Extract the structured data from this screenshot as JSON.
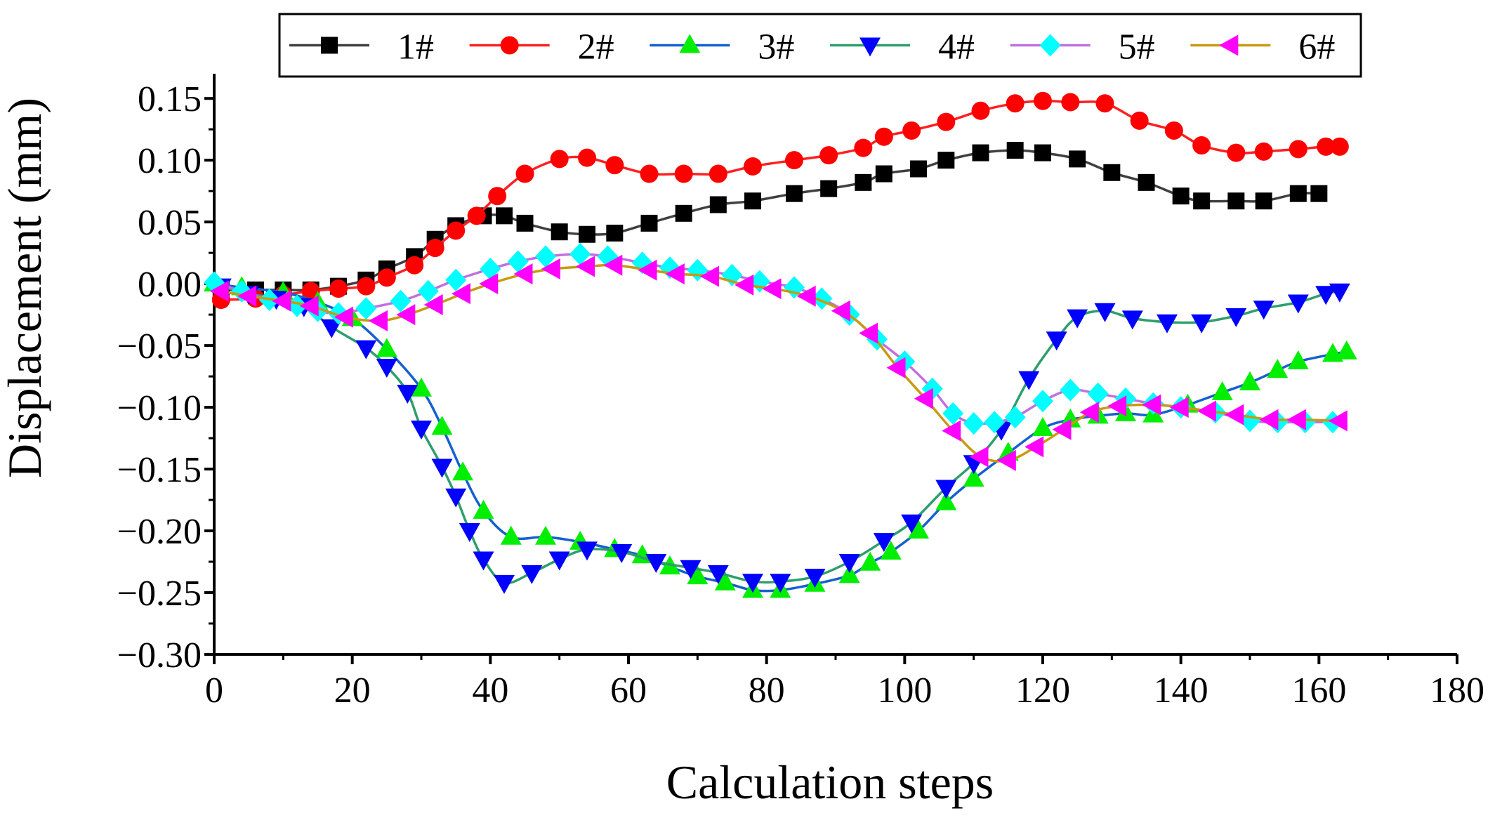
{
  "chart_data": {
    "type": "line",
    "title": "",
    "xlabel": "Calculation steps",
    "ylabel": "Displacement (mm)",
    "xlim": [
      0,
      180
    ],
    "ylim": [
      -0.3,
      0.17
    ],
    "xticks": [
      0,
      20,
      40,
      60,
      80,
      100,
      120,
      140,
      160,
      180
    ],
    "yticks": [
      -0.3,
      -0.25,
      -0.2,
      -0.15,
      -0.1,
      -0.05,
      0.0,
      0.05,
      0.1,
      0.15
    ],
    "xtick_labels": [
      "0",
      "20",
      "40",
      "60",
      "80",
      "100",
      "120",
      "140",
      "160",
      "180"
    ],
    "ytick_labels": [
      "−0.30",
      "−0.25",
      "−0.20",
      "−0.15",
      "−0.10",
      "−0.05",
      "0.00",
      "0.05",
      "0.10",
      "0.15"
    ],
    "grid": false,
    "legend_position": "top",
    "series": [
      {
        "name": "1#",
        "color": "#404040",
        "marker_color": "#000000",
        "marker": "square",
        "x": [
          1,
          6,
          10,
          14,
          18,
          22,
          25,
          29,
          32,
          35,
          39,
          42,
          45,
          50,
          54,
          58,
          63,
          68,
          73,
          78,
          84,
          89,
          94,
          97,
          102,
          106,
          111,
          116,
          120,
          125,
          130,
          135,
          140,
          143,
          148,
          152,
          157,
          160
        ],
        "y": [
          -0.005,
          -0.005,
          -0.005,
          -0.005,
          -0.002,
          0.003,
          0.012,
          0.022,
          0.036,
          0.047,
          0.055,
          0.055,
          0.049,
          0.042,
          0.04,
          0.041,
          0.049,
          0.057,
          0.064,
          0.067,
          0.073,
          0.077,
          0.082,
          0.089,
          0.093,
          0.1,
          0.106,
          0.108,
          0.106,
          0.101,
          0.09,
          0.082,
          0.071,
          0.067,
          0.067,
          0.067,
          0.073,
          0.073
        ]
      },
      {
        "name": "2#",
        "color": "#ff2020",
        "marker_color": "#ff0000",
        "marker": "circle",
        "x": [
          1,
          6,
          10,
          14,
          18,
          22,
          25,
          29,
          32,
          35,
          38,
          41,
          45,
          50,
          54,
          58,
          63,
          68,
          73,
          78,
          84,
          89,
          94,
          97,
          101,
          106,
          111,
          116,
          120,
          124,
          129,
          134,
          139,
          143,
          148,
          152,
          157,
          161,
          163
        ],
        "y": [
          -0.013,
          -0.012,
          -0.009,
          -0.006,
          -0.004,
          -0.002,
          0.005,
          0.015,
          0.029,
          0.043,
          0.055,
          0.071,
          0.089,
          0.101,
          0.102,
          0.096,
          0.089,
          0.089,
          0.089,
          0.095,
          0.1,
          0.104,
          0.11,
          0.119,
          0.124,
          0.131,
          0.14,
          0.146,
          0.148,
          0.147,
          0.146,
          0.132,
          0.124,
          0.112,
          0.106,
          0.107,
          0.109,
          0.111,
          0.111
        ]
      },
      {
        "name": "3#",
        "color": "#1560d0",
        "marker_color": "#00ee00",
        "marker": "triangle-up",
        "x": [
          0,
          4,
          10,
          15,
          20,
          25,
          30,
          33,
          36,
          39,
          43,
          48,
          53,
          58,
          62,
          66,
          70,
          74,
          78,
          82,
          87,
          92,
          95,
          98,
          102,
          106,
          110,
          115,
          120,
          124,
          128,
          132,
          136,
          141,
          146,
          150,
          154,
          157,
          162,
          164
        ],
        "y": [
          0.0,
          -0.003,
          -0.007,
          -0.015,
          -0.028,
          -0.053,
          -0.085,
          -0.116,
          -0.153,
          -0.184,
          -0.205,
          -0.205,
          -0.209,
          -0.215,
          -0.22,
          -0.229,
          -0.237,
          -0.242,
          -0.248,
          -0.248,
          -0.243,
          -0.236,
          -0.226,
          -0.217,
          -0.2,
          -0.177,
          -0.158,
          -0.137,
          -0.117,
          -0.11,
          -0.107,
          -0.105,
          -0.106,
          -0.098,
          -0.088,
          -0.08,
          -0.07,
          -0.063,
          -0.057,
          -0.055
        ]
      },
      {
        "name": "4#",
        "color": "#2e9e6c",
        "marker_color": "#0000ff",
        "marker": "triangle-down",
        "x": [
          1,
          5,
          9,
          13,
          17,
          22,
          25,
          28,
          30,
          33,
          35,
          37,
          39,
          42,
          46,
          50,
          54,
          59,
          64,
          69,
          73,
          78,
          82,
          87,
          92,
          97,
          101,
          106,
          110,
          114,
          118,
          122,
          125,
          129,
          133,
          138,
          143,
          148,
          152,
          157,
          161,
          163
        ],
        "y": [
          -0.002,
          -0.008,
          -0.012,
          -0.018,
          -0.035,
          -0.052,
          -0.067,
          -0.088,
          -0.117,
          -0.148,
          -0.172,
          -0.2,
          -0.223,
          -0.242,
          -0.234,
          -0.223,
          -0.215,
          -0.217,
          -0.225,
          -0.23,
          -0.234,
          -0.241,
          -0.241,
          -0.237,
          -0.225,
          -0.208,
          -0.193,
          -0.165,
          -0.145,
          -0.118,
          -0.077,
          -0.045,
          -0.027,
          -0.022,
          -0.028,
          -0.031,
          -0.031,
          -0.026,
          -0.02,
          -0.015,
          -0.008,
          -0.006
        ]
      },
      {
        "name": "5#",
        "color": "#c070e0",
        "marker_color": "#00ffff",
        "marker": "diamond",
        "x": [
          0,
          4,
          8,
          12,
          15,
          18,
          22,
          27,
          31,
          35,
          40,
          44,
          48,
          53,
          57,
          62,
          66,
          70,
          75,
          79,
          84,
          88,
          92,
          96,
          100,
          104,
          107,
          110,
          113,
          116,
          120,
          124,
          128,
          132,
          136,
          140,
          145,
          150,
          154,
          158,
          162
        ],
        "y": [
          0.001,
          -0.006,
          -0.013,
          -0.018,
          -0.022,
          -0.024,
          -0.02,
          -0.014,
          -0.006,
          0.003,
          0.012,
          0.018,
          0.022,
          0.024,
          0.022,
          0.017,
          0.013,
          0.011,
          0.007,
          0.002,
          -0.003,
          -0.012,
          -0.025,
          -0.045,
          -0.063,
          -0.085,
          -0.105,
          -0.113,
          -0.112,
          -0.108,
          -0.095,
          -0.086,
          -0.089,
          -0.093,
          -0.097,
          -0.1,
          -0.104,
          -0.111,
          -0.112,
          -0.112,
          -0.112
        ]
      },
      {
        "name": "6#",
        "color": "#c89a10",
        "marker_color": "#ff00ff",
        "marker": "triangle-left",
        "x": [
          1,
          5,
          10,
          14,
          19,
          24,
          28,
          32,
          36,
          40,
          45,
          49,
          54,
          58,
          63,
          67,
          72,
          77,
          81,
          86,
          91,
          95,
          99,
          103,
          107,
          111,
          115,
          119,
          123,
          127,
          131,
          136,
          140,
          144,
          148,
          153,
          157,
          163
        ],
        "y": [
          -0.006,
          -0.01,
          -0.014,
          -0.018,
          -0.027,
          -0.03,
          -0.025,
          -0.017,
          -0.008,
          0.0,
          0.008,
          0.012,
          0.014,
          0.015,
          0.011,
          0.008,
          0.006,
          -0.001,
          -0.004,
          -0.01,
          -0.022,
          -0.04,
          -0.068,
          -0.093,
          -0.119,
          -0.14,
          -0.143,
          -0.132,
          -0.118,
          -0.104,
          -0.099,
          -0.098,
          -0.1,
          -0.103,
          -0.106,
          -0.11,
          -0.11,
          -0.111
        ]
      }
    ]
  }
}
